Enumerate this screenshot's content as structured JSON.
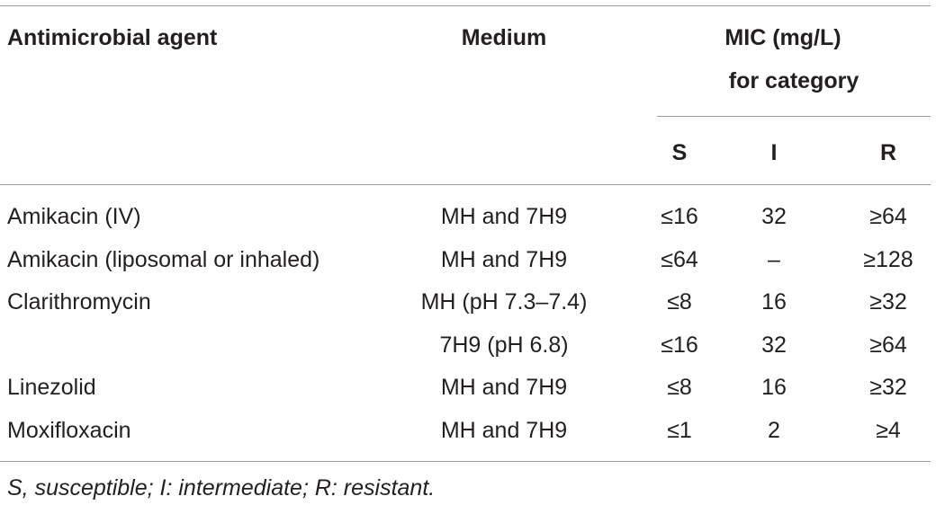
{
  "header": {
    "agent": "Antimicrobial agent",
    "medium": "Medium",
    "mic": [
      "MIC (mg/L)",
      "for category"
    ],
    "categories": [
      "S",
      "I",
      "R"
    ]
  },
  "rows": [
    {
      "agent": "Amikacin (IV)",
      "medium": "MH and 7H9",
      "cells": [
        "≤16",
        "32",
        "≥64"
      ]
    },
    {
      "agent": "Amikacin (liposomal or inhaled)",
      "medium": "MH and 7H9",
      "cells": [
        "≤64",
        "–",
        "≥128"
      ]
    },
    {
      "agent": "Clarithromycin",
      "medium": "MH (pH 7.3–7.4)",
      "cells": [
        "≤8",
        "16",
        "≥32"
      ]
    },
    {
      "medium": "7H9 (pH 6.8)",
      "cells": [
        "≤16",
        "32",
        "≥64"
      ]
    },
    {
      "agent": "Linezolid",
      "medium": "MH and 7H9",
      "cells": [
        "≤8",
        "16",
        "≥32"
      ]
    },
    {
      "agent": "Moxifloxacin",
      "medium": "MH and 7H9",
      "cells": [
        "≤1",
        "2",
        "≥4"
      ]
    }
  ],
  "footnote": "S, susceptible; I: intermediate; R: resistant."
}
